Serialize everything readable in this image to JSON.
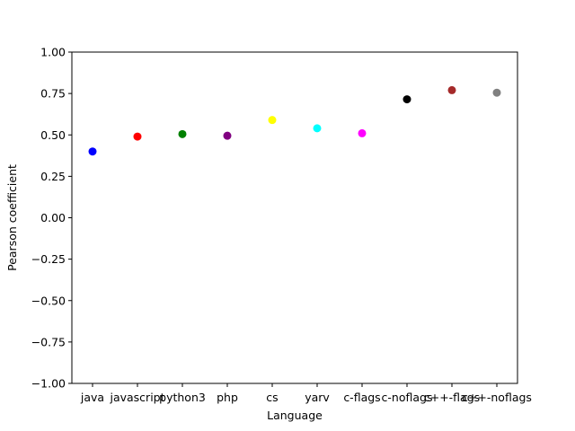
{
  "chart_data": {
    "type": "scatter",
    "title": "",
    "xlabel": "Language",
    "ylabel": "Pearson coefficient",
    "ylim": [
      -1.0,
      1.0
    ],
    "yticks": [
      "−1.00",
      "−0.75",
      "−0.50",
      "−0.25",
      "0.00",
      "0.25",
      "0.50",
      "0.75",
      "1.00"
    ],
    "ytick_values": [
      -1.0,
      -0.75,
      -0.5,
      -0.25,
      0.0,
      0.25,
      0.5,
      0.75,
      1.0
    ],
    "grid": false,
    "categories": [
      "java",
      "javascript",
      "python3",
      "php",
      "cs",
      "yarv",
      "c-flags",
      "c-noflags",
      "c++-flags",
      "c++-noflags"
    ],
    "values": [
      0.4,
      0.49,
      0.505,
      0.495,
      0.59,
      0.54,
      0.51,
      0.715,
      0.77,
      0.755
    ],
    "colors": [
      "#0000ff",
      "#ff0000",
      "#008000",
      "#800080",
      "#ffff00",
      "#00ffff",
      "#ff00ff",
      "#000000",
      "#a52a2a",
      "#808080"
    ]
  }
}
